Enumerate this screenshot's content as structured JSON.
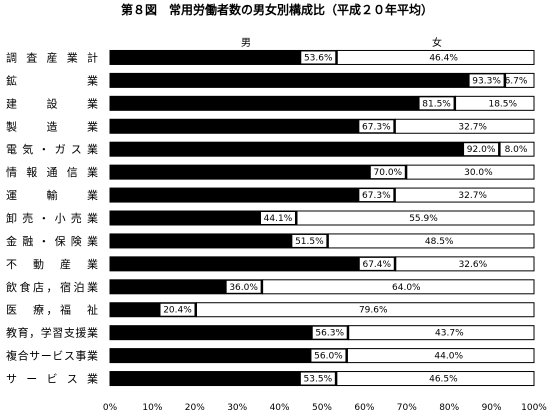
{
  "chart_data": {
    "type": "bar",
    "stacked": "percent",
    "orientation": "horizontal",
    "title": "第８図　常用労働者数の男女別構成比（平成２０年平均）",
    "categories": [
      "調査産業計",
      "鉱　　　業",
      "建　設　業",
      "製　造　業",
      "電気・ガス業",
      "情報通信業",
      "運　輸　業",
      "卸売・小売業",
      "金融・保険業",
      "不動産業",
      "飲食店，宿泊業",
      "医　療，福　祉",
      "教育，学習支援業",
      "複合サービス事業",
      "サービス業"
    ],
    "series": [
      {
        "name": "男",
        "color": "#000000",
        "values": [
          53.6,
          93.3,
          81.5,
          67.3,
          92.0,
          70.0,
          67.3,
          44.1,
          51.5,
          67.4,
          36.0,
          20.4,
          56.3,
          56.0,
          53.5
        ]
      },
      {
        "name": "女",
        "color": "#ffffff",
        "values": [
          46.4,
          6.7,
          18.5,
          32.7,
          8.0,
          30.0,
          32.7,
          55.9,
          48.5,
          32.6,
          64.0,
          79.6,
          43.7,
          44.0,
          46.5
        ]
      }
    ],
    "labels": {
      "male": [
        "53.6%",
        "93.3%",
        "81.5%",
        "67.3%",
        "92.0%",
        "70.0%",
        "67.3%",
        "44.1%",
        "51.5%",
        "67.4%",
        "36.0%",
        "20.4%",
        "56.3%",
        "56.0%",
        "53.5%"
      ],
      "female": [
        "46.4%",
        "6.7%",
        "18.5%",
        "32.7%",
        "8.0%",
        "30.0%",
        "32.7%",
        "55.9%",
        "48.5%",
        "32.6%",
        "64.0%",
        "79.6%",
        "43.7%",
        "44.0%",
        "46.5%"
      ]
    },
    "x_ticks": [
      "0%",
      "10%",
      "20%",
      "30%",
      "40%",
      "50%",
      "60%",
      "70%",
      "80%",
      "90%",
      "100%"
    ],
    "xlim": [
      0,
      100
    ],
    "grid": false,
    "legend_position": "top"
  }
}
